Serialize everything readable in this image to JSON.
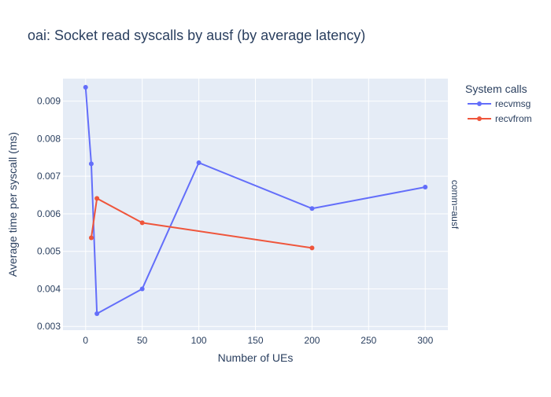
{
  "chart_data": {
    "type": "line",
    "title": "oai: Socket read syscalls by ausf (by average latency)",
    "xlabel": "Number of UEs",
    "ylabel": "Average time per syscall (ms)",
    "facet_label": "comm=ausf",
    "legend_title": "System calls",
    "legend_position": "top-right",
    "grid": true,
    "xlim": [
      -20,
      320
    ],
    "ylim": [
      0.0029,
      0.0096
    ],
    "xticks": [
      0,
      50,
      100,
      150,
      200,
      250,
      300
    ],
    "yticks": [
      0.003,
      0.004,
      0.005,
      0.006,
      0.007,
      0.008,
      0.009
    ],
    "xtick_labels": [
      "0",
      "50",
      "100",
      "150",
      "200",
      "250",
      "300"
    ],
    "ytick_labels": [
      "0.003",
      "0.004",
      "0.005",
      "0.006",
      "0.007",
      "0.008",
      "0.009"
    ],
    "series": [
      {
        "name": "recvmsg",
        "color": "#636efa",
        "x": [
          0,
          5,
          10,
          50,
          100,
          200,
          300
        ],
        "y": [
          0.00937,
          0.00733,
          0.00334,
          0.004,
          0.00736,
          0.00614,
          0.00671
        ]
      },
      {
        "name": "recvfrom",
        "color": "#ef553b",
        "x": [
          5,
          10,
          50,
          200
        ],
        "y": [
          0.00536,
          0.00641,
          0.00576,
          0.00509
        ]
      }
    ]
  },
  "colors": {
    "plot_background": "#e5ecf6",
    "gridline": "#ffffff",
    "text": "#2a3f5f"
  }
}
